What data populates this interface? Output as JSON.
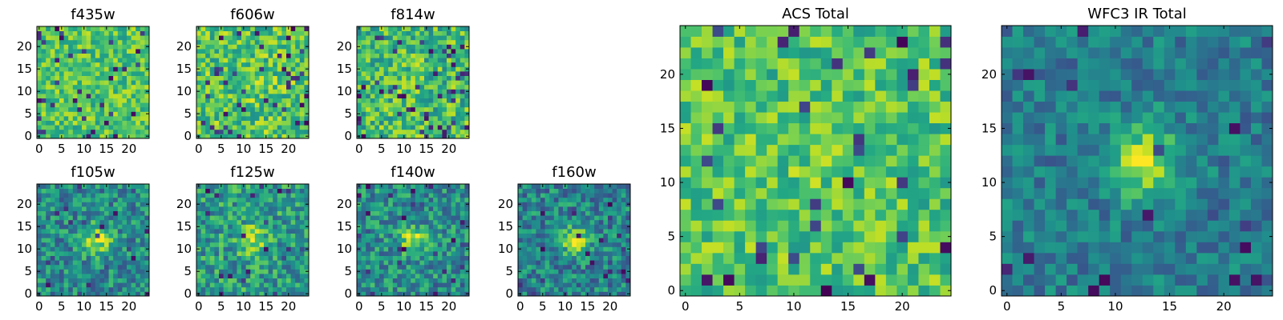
{
  "chart_data": [
    {
      "type": "heatmap",
      "title": "f435w",
      "colormap": "viridis",
      "xlim": [
        0,
        24
      ],
      "ylim": [
        0,
        24
      ],
      "xticks": [
        0,
        5,
        10,
        15,
        20
      ],
      "yticks": [
        0,
        5,
        10,
        15,
        20
      ],
      "pixels": 25,
      "source": "noise",
      "seed": 11,
      "blob": {
        "cx": 12,
        "cy": 12,
        "sigma": 2.5,
        "amp": 0.0
      },
      "noise_level": 0.12,
      "base": 0.72,
      "dark_fraction": 0.05
    },
    {
      "type": "heatmap",
      "title": "f606w",
      "colormap": "viridis",
      "xlim": [
        0,
        24
      ],
      "ylim": [
        0,
        24
      ],
      "xticks": [
        0,
        5,
        10,
        15,
        20
      ],
      "yticks": [
        0,
        5,
        10,
        15,
        20
      ],
      "pixels": 25,
      "source": "noise",
      "seed": 23,
      "blob": {
        "cx": 12,
        "cy": 12,
        "sigma": 2.5,
        "amp": 0.08
      },
      "noise_level": 0.14,
      "base": 0.72,
      "dark_fraction": 0.06
    },
    {
      "type": "heatmap",
      "title": "f814w",
      "colormap": "viridis",
      "xlim": [
        0,
        24
      ],
      "ylim": [
        0,
        24
      ],
      "xticks": [
        0,
        5,
        10,
        15,
        20
      ],
      "yticks": [
        0,
        5,
        10,
        15,
        20
      ],
      "pixels": 25,
      "source": "noise",
      "seed": 37,
      "blob": {
        "cx": 12,
        "cy": 12,
        "sigma": 2.5,
        "amp": 0.06
      },
      "noise_level": 0.15,
      "base": 0.68,
      "dark_fraction": 0.07
    },
    {
      "type": "heatmap",
      "title": "f105w",
      "colormap": "viridis",
      "xlim": [
        0,
        24
      ],
      "ylim": [
        0,
        24
      ],
      "xticks": [
        0,
        5,
        10,
        15,
        20
      ],
      "yticks": [
        0,
        5,
        10,
        15,
        20
      ],
      "pixels": 25,
      "source": "noise",
      "seed": 41,
      "blob": {
        "cx": 13,
        "cy": 12,
        "sigma": 2.2,
        "amp": 0.45
      },
      "noise_level": 0.14,
      "base": 0.48,
      "dark_fraction": 0.04
    },
    {
      "type": "heatmap",
      "title": "f125w",
      "colormap": "viridis",
      "xlim": [
        0,
        24
      ],
      "ylim": [
        0,
        24
      ],
      "xticks": [
        0,
        5,
        10,
        15,
        20
      ],
      "yticks": [
        0,
        5,
        10,
        15,
        20
      ],
      "pixels": 25,
      "source": "noise",
      "seed": 53,
      "blob": {
        "cx": 12,
        "cy": 12,
        "sigma": 2.2,
        "amp": 0.35
      },
      "noise_level": 0.15,
      "base": 0.55,
      "dark_fraction": 0.04
    },
    {
      "type": "heatmap",
      "title": "f140w",
      "colormap": "viridis",
      "xlim": [
        0,
        24
      ],
      "ylim": [
        0,
        24
      ],
      "xticks": [
        0,
        5,
        10,
        15,
        20
      ],
      "yticks": [
        0,
        5,
        10,
        15,
        20
      ],
      "pixels": 25,
      "source": "noise",
      "seed": 67,
      "blob": {
        "cx": 12,
        "cy": 12,
        "sigma": 2.0,
        "amp": 0.4
      },
      "noise_level": 0.14,
      "base": 0.5,
      "dark_fraction": 0.04
    },
    {
      "type": "heatmap",
      "title": "f160w",
      "colormap": "viridis",
      "xlim": [
        0,
        24
      ],
      "ylim": [
        0,
        24
      ],
      "xticks": [
        0,
        5,
        10,
        15,
        20
      ],
      "yticks": [
        0,
        5,
        10,
        15,
        20
      ],
      "pixels": 25,
      "source": "noise",
      "seed": 79,
      "blob": {
        "cx": 12,
        "cy": 12,
        "sigma": 2.0,
        "amp": 0.5
      },
      "noise_level": 0.14,
      "base": 0.45,
      "dark_fraction": 0.04
    },
    {
      "type": "heatmap",
      "title": "ACS Total",
      "colormap": "viridis",
      "xlim": [
        0,
        24
      ],
      "ylim": [
        0,
        24
      ],
      "xticks": [
        0,
        5,
        10,
        15,
        20
      ],
      "yticks": [
        0,
        5,
        10,
        15,
        20
      ],
      "pixels": 25,
      "source": "noise",
      "seed": 97,
      "blob": {
        "cx": 12,
        "cy": 12,
        "sigma": 2.5,
        "amp": 0.05
      },
      "noise_level": 0.12,
      "base": 0.72,
      "dark_fraction": 0.05
    },
    {
      "type": "heatmap",
      "title": "WFC3 IR Total",
      "colormap": "viridis",
      "xlim": [
        0,
        24
      ],
      "ylim": [
        0,
        24
      ],
      "xticks": [
        0,
        5,
        10,
        15,
        20
      ],
      "yticks": [
        0,
        5,
        10,
        15,
        20
      ],
      "pixels": 25,
      "source": "noise",
      "seed": 113,
      "blob": {
        "cx": 12.5,
        "cy": 12,
        "sigma": 2.3,
        "amp": 0.5
      },
      "noise_level": 0.1,
      "base": 0.42,
      "dark_fraction": 0.03
    }
  ]
}
